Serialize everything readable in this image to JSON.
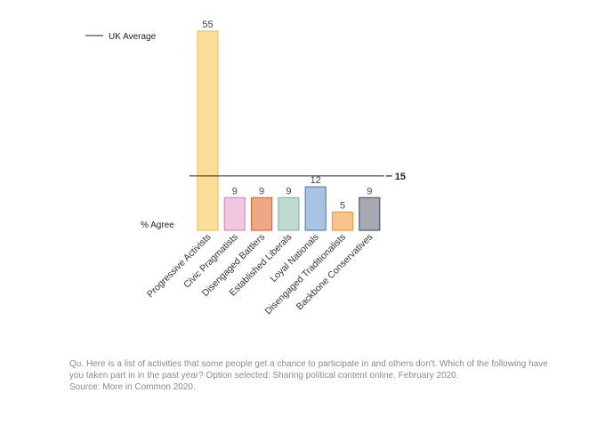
{
  "chart_data": {
    "type": "bar",
    "categories": [
      "Progressive Activists",
      "Civic Pragmatists",
      "Disengaged Battlers",
      "Established Liberals",
      "Loyal Nationals",
      "Disengaged Traditionalists",
      "Backbone Conservatives"
    ],
    "values": [
      55,
      9,
      9,
      9,
      12,
      5,
      9
    ],
    "colors": [
      {
        "fill": "#fcdd9a",
        "stroke": "#f3c44c"
      },
      {
        "fill": "#f0c6e0",
        "stroke": "#d88ec0"
      },
      {
        "fill": "#f0a783",
        "stroke": "#d8693c"
      },
      {
        "fill": "#bfdbcf",
        "stroke": "#88b8a3"
      },
      {
        "fill": "#a9c4e2",
        "stroke": "#5b87bd"
      },
      {
        "fill": "#f9c48c",
        "stroke": "#ec9a45"
      },
      {
        "fill": "#a5a9b4",
        "stroke": "#4e5668"
      }
    ],
    "reference_line": {
      "label": "UK Average",
      "value": 15,
      "value_label": "15"
    },
    "ylabel": "% Agree",
    "ylim": [
      0,
      55
    ],
    "grid": false,
    "legend": "top-left"
  },
  "footnote": {
    "question": "Qu. Here is a list of activities that some people get a chance to participate in and others don't. Which of the following have you taken part in in the past year? Option selected: Sharing political content online. February 2020.",
    "source": "Source: More in Common 2020."
  }
}
